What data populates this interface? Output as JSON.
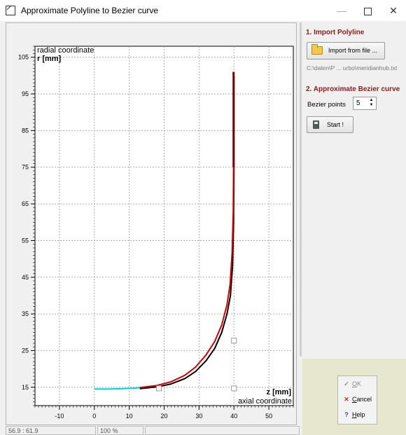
{
  "window": {
    "title": "Approximate Polyline to Bezier curve",
    "minimize_glyph": "—",
    "close_glyph": "✕"
  },
  "chart_data": {
    "type": "line",
    "ylabel_top": "radial coordinate",
    "ylabel_unit": "r [mm]",
    "xlabel_unit": "z [mm]",
    "xlabel_bottom": "axial coordinate",
    "xlim": [
      -17,
      57
    ],
    "ylim": [
      10,
      108
    ],
    "xticks": [
      -10,
      0,
      10,
      20,
      30,
      40,
      50
    ],
    "yticks": [
      15,
      25,
      35,
      45,
      55,
      65,
      75,
      85,
      95,
      105
    ],
    "grid": true,
    "series": [
      {
        "color": "#000000",
        "points": [
          [
            13,
            14.6
          ],
          [
            18,
            15.1
          ],
          [
            22,
            15.9
          ],
          [
            26,
            17.4
          ],
          [
            29,
            19.3
          ],
          [
            32,
            22.2
          ],
          [
            34.5,
            25.6
          ],
          [
            36.5,
            30
          ],
          [
            38,
            35
          ],
          [
            39,
            40
          ],
          [
            39.6,
            48
          ],
          [
            39.9,
            60
          ],
          [
            40,
            75
          ],
          [
            40,
            100
          ]
        ]
      },
      {
        "color": "#00d5d5",
        "points": [
          [
            0,
            14.5
          ],
          [
            4,
            14.5
          ],
          [
            8,
            14.6
          ],
          [
            12,
            14.8
          ],
          [
            14,
            15
          ]
        ]
      },
      {
        "color": "#d40000",
        "points": [
          [
            13,
            14.9
          ],
          [
            18,
            15.5
          ],
          [
            22,
            16.5
          ],
          [
            26,
            18.3
          ],
          [
            29,
            20.5
          ],
          [
            32,
            23.8
          ],
          [
            34.5,
            27.5
          ],
          [
            36.5,
            32
          ],
          [
            38,
            37.5
          ],
          [
            38.9,
            43
          ],
          [
            39.5,
            52
          ],
          [
            39.8,
            63
          ],
          [
            39.9,
            76
          ]
        ]
      },
      {
        "color": "#7a0000",
        "points": [
          [
            39.9,
            75
          ],
          [
            39.9,
            101
          ]
        ]
      }
    ],
    "control_points": [
      [
        18.5,
        14.7
      ],
      [
        40,
        14.7
      ],
      [
        40,
        27.7
      ]
    ]
  },
  "status": {
    "coords": "56.9 : 61.9",
    "zoom": "100 %"
  },
  "panel": {
    "section1": "1. Import Polyline",
    "import_label": "Import from file ...",
    "file_path": "C:\\daten\\P ... urbo\\meridianhub.txt",
    "section2": "2. Approximate Bezier curve",
    "bezier_label": "Bezier points",
    "bezier_value": "5",
    "start_label": "Start !"
  },
  "dialog": {
    "ok_pre": "",
    "ok_u": "O",
    "ok_post": "K",
    "cancel_pre": "",
    "cancel_u": "C",
    "cancel_post": "ancel",
    "help_pre": "",
    "help_u": "H",
    "help_post": "elp"
  }
}
